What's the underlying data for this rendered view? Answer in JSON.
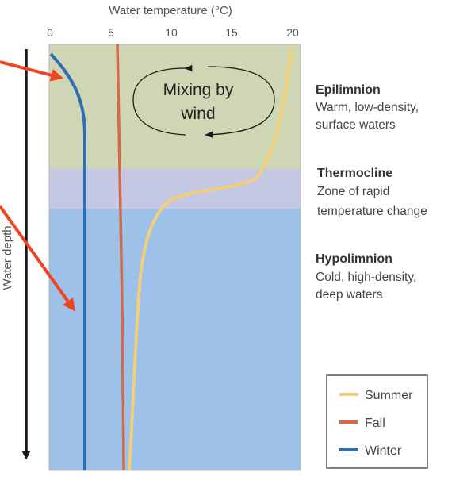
{
  "x_axis": {
    "title": "Water temperature (°C)",
    "ticks": [
      "0",
      "5",
      "10",
      "15",
      "20"
    ]
  },
  "y_axis": {
    "title": "Water depth"
  },
  "annotation": {
    "mixing_line1": "Mixing by",
    "mixing_line2": "wind"
  },
  "zones": {
    "epilimnion": {
      "title": "Epilimnion",
      "desc_line1": "Warm, low-density,",
      "desc_line2": "surface waters",
      "color": "#cfd6b4"
    },
    "thermocline": {
      "title": "Thermocline",
      "desc_line1": "Zone of rapid",
      "desc_line2": "temperature change",
      "color": "#c4c8e2"
    },
    "hypolimnion": {
      "title": "Hypolimnion",
      "desc_line1": "Cold, high-density,",
      "desc_line2": "deep waters",
      "color": "#9dc1e8"
    }
  },
  "legend": {
    "summer": {
      "label": "Summer",
      "color": "#f3cf79"
    },
    "fall": {
      "label": "Fall",
      "color": "#d2694c"
    },
    "winter": {
      "label": "Winter",
      "color": "#2f6db5"
    }
  },
  "arrow_color": "#ee4422"
}
